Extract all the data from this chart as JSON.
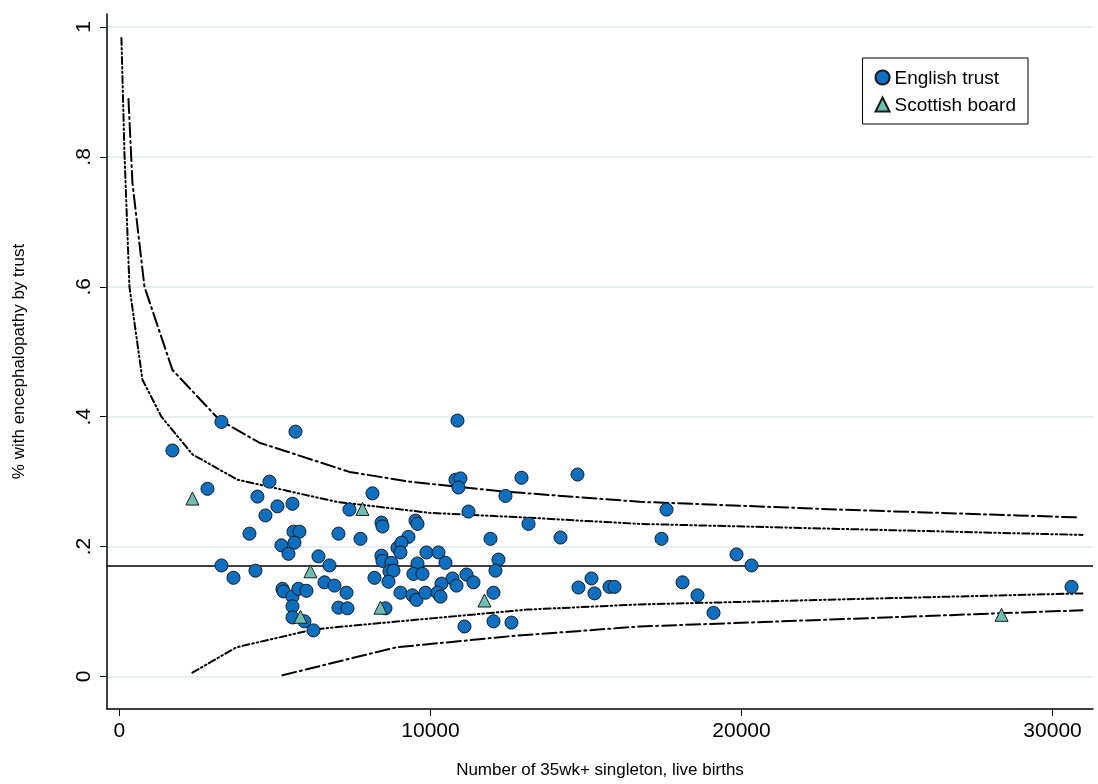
{
  "chart_data": {
    "type": "scatter",
    "xlabel": "Number of 35wk+ singleton, live births",
    "ylabel": "% with encephalopathy by trust",
    "xlim": [
      -400,
      31300
    ],
    "xticks": [
      0,
      10000,
      20000,
      30000
    ],
    "ylim": [
      -0.05,
      1.02
    ],
    "yticks": [
      {
        "value": 0,
        "label": "0"
      },
      {
        "value": 0.2,
        "label": ".2"
      },
      {
        "value": 0.4,
        "label": ".4"
      },
      {
        "value": 0.6,
        "label": ".6"
      },
      {
        "value": 0.8,
        "label": ".8"
      },
      {
        "value": 1,
        "label": "1"
      }
    ],
    "grid": "y",
    "legend": "top right",
    "ref_lines": [
      {
        "axis": "y",
        "value": 0.172,
        "label": null,
        "color": "#000000",
        "line_style": "solid"
      }
    ],
    "series": [
      {
        "name": "English trust",
        "type": "scatter",
        "marker": "circle",
        "color": "#0c6fbf",
        "x": [
          1704,
          3280,
          5659,
          2830,
          4823,
          4437,
          5080,
          5563,
          4694,
          7395,
          4180,
          5595,
          5788,
          7042,
          5209,
          5627,
          5434,
          6399,
          6752,
          3280,
          3666,
          4373,
          6592,
          6913,
          7299,
          5241,
          5273,
          5563,
          5755,
          6013,
          5563,
          7042,
          7331,
          5563,
          5948,
          6238,
          10868,
          10803,
          10964,
          10900,
          12411,
          12926,
          8135,
          11222,
          13151,
          8424,
          8456,
          9518,
          9582,
          7749,
          11929,
          9292,
          8939,
          9067,
          9035,
          9871,
          10257,
          10482,
          8424,
          8456,
          8746,
          9582,
          8681,
          8810,
          12186,
          12090,
          9453,
          9742,
          8199,
          8649,
          10707,
          11157,
          11382,
          10353,
          10836,
          9035,
          9421,
          9550,
          9839,
          10225,
          10321,
          12026,
          8553,
          11093,
          12026,
          12604,
          14726,
          17588,
          14180,
          17427,
          14758,
          15176,
          15273,
          15755,
          15916,
          18102,
          18585,
          19099,
          19839,
          20321,
          30610
        ],
        "values": [
          0.348,
          0.392,
          0.377,
          0.289,
          0.3,
          0.277,
          0.262,
          0.266,
          0.248,
          0.257,
          0.22,
          0.223,
          0.223,
          0.22,
          0.202,
          0.206,
          0.189,
          0.185,
          0.171,
          0.171,
          0.152,
          0.163,
          0.145,
          0.14,
          0.129,
          0.135,
          0.131,
          0.123,
          0.135,
          0.132,
          0.108,
          0.106,
          0.105,
          0.091,
          0.085,
          0.071,
          0.394,
          0.303,
          0.305,
          0.291,
          0.278,
          0.306,
          0.282,
          0.254,
          0.235,
          0.237,
          0.231,
          0.24,
          0.235,
          0.212,
          0.212,
          0.215,
          0.198,
          0.206,
          0.191,
          0.191,
          0.191,
          0.175,
          0.186,
          0.178,
          0.175,
          0.174,
          0.162,
          0.163,
          0.18,
          0.163,
          0.158,
          0.158,
          0.152,
          0.146,
          0.151,
          0.157,
          0.145,
          0.143,
          0.14,
          0.129,
          0.125,
          0.118,
          0.129,
          0.129,
          0.123,
          0.129,
          0.105,
          0.077,
          0.085,
          0.083,
          0.311,
          0.257,
          0.214,
          0.212,
          0.137,
          0.151,
          0.128,
          0.138,
          0.138,
          0.145,
          0.125,
          0.098,
          0.188,
          0.171,
          0.138
        ]
      },
      {
        "name": "Scottish board",
        "type": "scatter",
        "marker": "triangle",
        "color": "#6cbfb0",
        "x": [
          2347,
          6141,
          5820,
          7813,
          8392,
          11736,
          28360
        ],
        "values": [
          0.274,
          0.162,
          0.092,
          0.258,
          0.106,
          0.117,
          0.095
        ]
      },
      {
        "type": "line",
        "marker": "none",
        "line_style": "dashed",
        "color": "#000000",
        "x": [
          290,
          418,
          804,
          1704,
          3215,
          4500,
          7395,
          9325,
          12315,
          16720,
          23150,
          30770
        ],
        "values": [
          0.889,
          0.76,
          0.6,
          0.472,
          0.395,
          0.36,
          0.315,
          0.3,
          0.285,
          0.269,
          0.257,
          0.245
        ]
      },
      {
        "type": "line",
        "marker": "none",
        "line_style": "dotted",
        "color": "#000000",
        "x": [
          64,
          161,
          322,
          740,
          1350,
          2347,
          3794,
          6977,
          9968,
          12958,
          16720,
          24212,
          30960
        ],
        "values": [
          0.983,
          0.806,
          0.6,
          0.457,
          0.4,
          0.342,
          0.303,
          0.269,
          0.252,
          0.245,
          0.235,
          0.226,
          0.218
        ]
      },
      {
        "type": "line",
        "marker": "none",
        "line_style": "dotted",
        "color": "#000000",
        "x": [
          2347,
          3762,
          6206,
          6752,
          13087,
          16720,
          30960
        ],
        "values": [
          0.006,
          0.045,
          0.072,
          0.075,
          0.103,
          0.111,
          0.128
        ]
      },
      {
        "type": "line",
        "marker": "none",
        "line_style": "dashed",
        "color": "#000000",
        "x": [
          5241,
          8907,
          12765,
          16720,
          30960
        ],
        "values": [
          0.002,
          0.045,
          0.063,
          0.077,
          0.102
        ]
      }
    ]
  }
}
